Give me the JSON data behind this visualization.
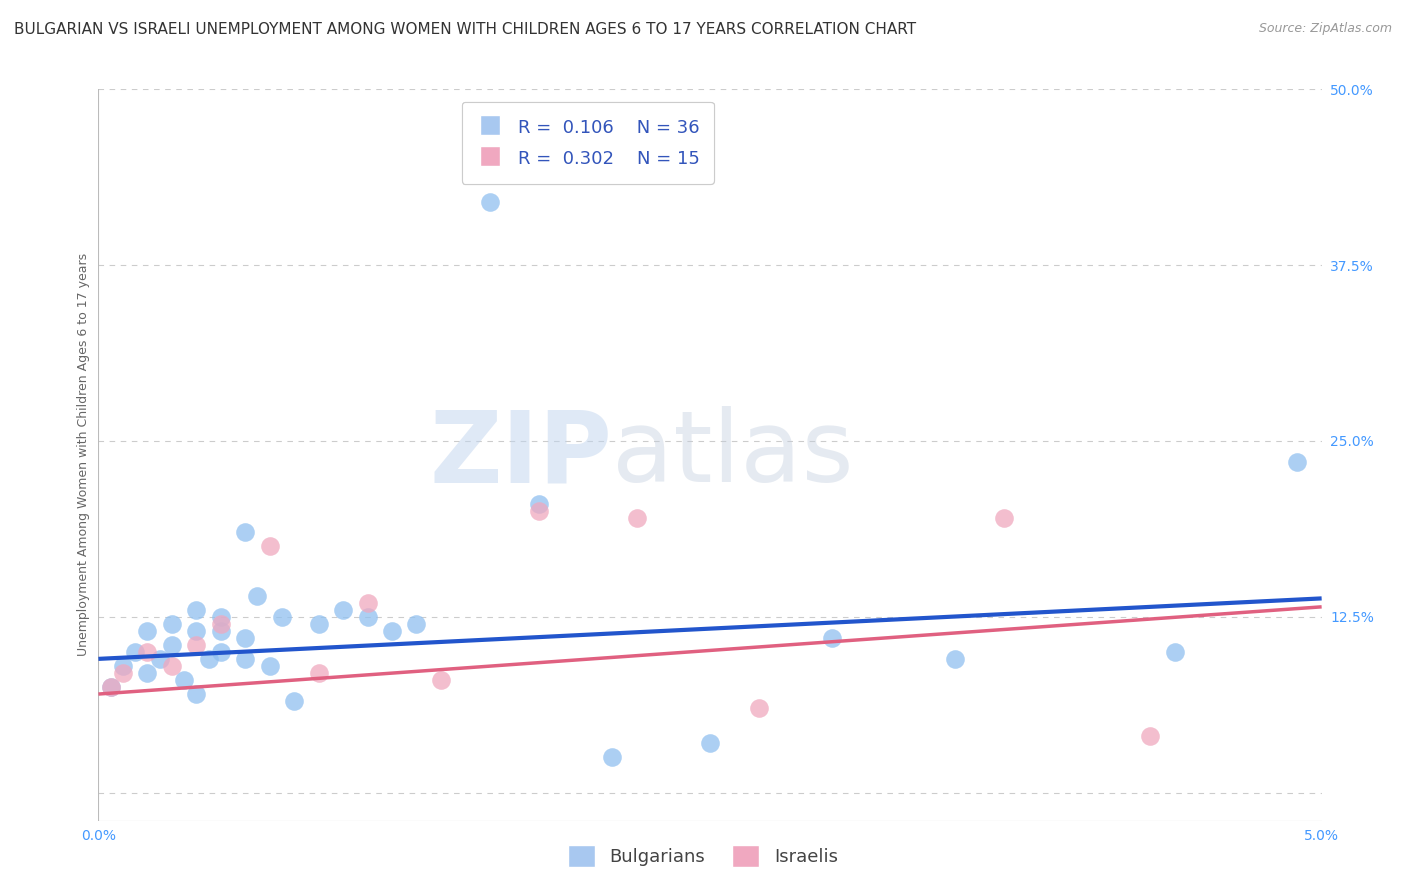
{
  "title": "BULGARIAN VS ISRAELI UNEMPLOYMENT AMONG WOMEN WITH CHILDREN AGES 6 TO 17 YEARS CORRELATION CHART",
  "source": "Source: ZipAtlas.com",
  "ylabel": "Unemployment Among Women with Children Ages 6 to 17 years",
  "xlim": [
    0.0,
    0.05
  ],
  "ylim": [
    -0.02,
    0.5
  ],
  "xticks": [
    0.0,
    0.01,
    0.02,
    0.03,
    0.04,
    0.05
  ],
  "xtick_labels": [
    "0.0%",
    "",
    "",
    "",
    "",
    "5.0%"
  ],
  "ytick_labels_right": [
    "50.0%",
    "37.5%",
    "25.0%",
    "12.5%",
    ""
  ],
  "yticks_right": [
    0.5,
    0.375,
    0.25,
    0.125,
    0.0
  ],
  "grid_color": "#cccccc",
  "watermark_zip": "ZIP",
  "watermark_atlas": "atlas",
  "bg_color": "#ffffff",
  "legend_R1": "R = 0.106",
  "legend_N1": "N = 36",
  "legend_R2": "R = 0.302",
  "legend_N2": "N = 15",
  "legend_color1": "#a8c8f0",
  "legend_color2": "#f0a8c0",
  "scatter_color_blue": "#90c0f0",
  "scatter_color_pink": "#f0a8be",
  "line_color_blue": "#2255cc",
  "line_color_pink": "#e06080",
  "blue_x": [
    0.0005,
    0.001,
    0.0015,
    0.002,
    0.002,
    0.0025,
    0.003,
    0.003,
    0.0035,
    0.004,
    0.004,
    0.004,
    0.0045,
    0.005,
    0.005,
    0.005,
    0.006,
    0.006,
    0.006,
    0.0065,
    0.007,
    0.0075,
    0.008,
    0.009,
    0.01,
    0.011,
    0.012,
    0.013,
    0.016,
    0.018,
    0.021,
    0.025,
    0.03,
    0.035,
    0.044,
    0.049
  ],
  "blue_y": [
    0.075,
    0.09,
    0.1,
    0.085,
    0.115,
    0.095,
    0.105,
    0.12,
    0.08,
    0.13,
    0.115,
    0.07,
    0.095,
    0.1,
    0.115,
    0.125,
    0.185,
    0.11,
    0.095,
    0.14,
    0.09,
    0.125,
    0.065,
    0.12,
    0.13,
    0.125,
    0.115,
    0.12,
    0.42,
    0.205,
    0.025,
    0.035,
    0.11,
    0.095,
    0.1,
    0.235
  ],
  "pink_x": [
    0.0005,
    0.001,
    0.002,
    0.003,
    0.004,
    0.005,
    0.007,
    0.009,
    0.011,
    0.014,
    0.018,
    0.022,
    0.027,
    0.037,
    0.043
  ],
  "pink_y": [
    0.075,
    0.085,
    0.1,
    0.09,
    0.105,
    0.12,
    0.175,
    0.085,
    0.135,
    0.08,
    0.2,
    0.195,
    0.06,
    0.195,
    0.04
  ],
  "blue_line_x": [
    0.0,
    0.05
  ],
  "blue_line_y": [
    0.095,
    0.138
  ],
  "pink_line_x": [
    0.0,
    0.05
  ],
  "pink_line_y": [
    0.07,
    0.132
  ],
  "title_fontsize": 11,
  "axis_label_fontsize": 9,
  "tick_fontsize": 10,
  "legend_fontsize": 13
}
